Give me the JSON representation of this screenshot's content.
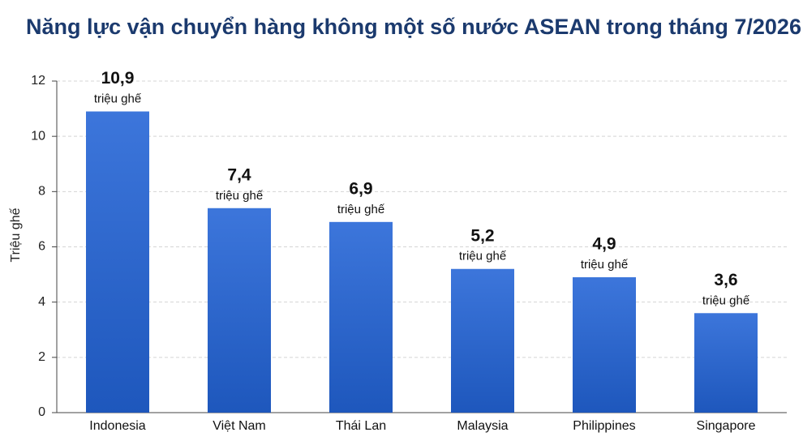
{
  "chart_data": {
    "type": "bar",
    "title": "Năng lực vận chuyển hàng không một số nước ASEAN trong tháng 7/2026",
    "y_label": "Triệu ghế",
    "categories": [
      "Indonesia",
      "Việt Nam",
      "Thái Lan",
      "Malaysia",
      "Philippines",
      "Singapore"
    ],
    "values": [
      10.9,
      7.4,
      6.9,
      5.2,
      4.9,
      3.6
    ],
    "value_labels": [
      "10,9",
      "7,4",
      "6,9",
      "5,2",
      "4,9",
      "3,6"
    ],
    "value_label_unit": "triệu ghế",
    "color": "#2263d6",
    "ylim": [
      0,
      12
    ],
    "yticks": [
      0,
      2,
      4,
      6,
      8,
      10,
      12
    ],
    "grid": true
  }
}
